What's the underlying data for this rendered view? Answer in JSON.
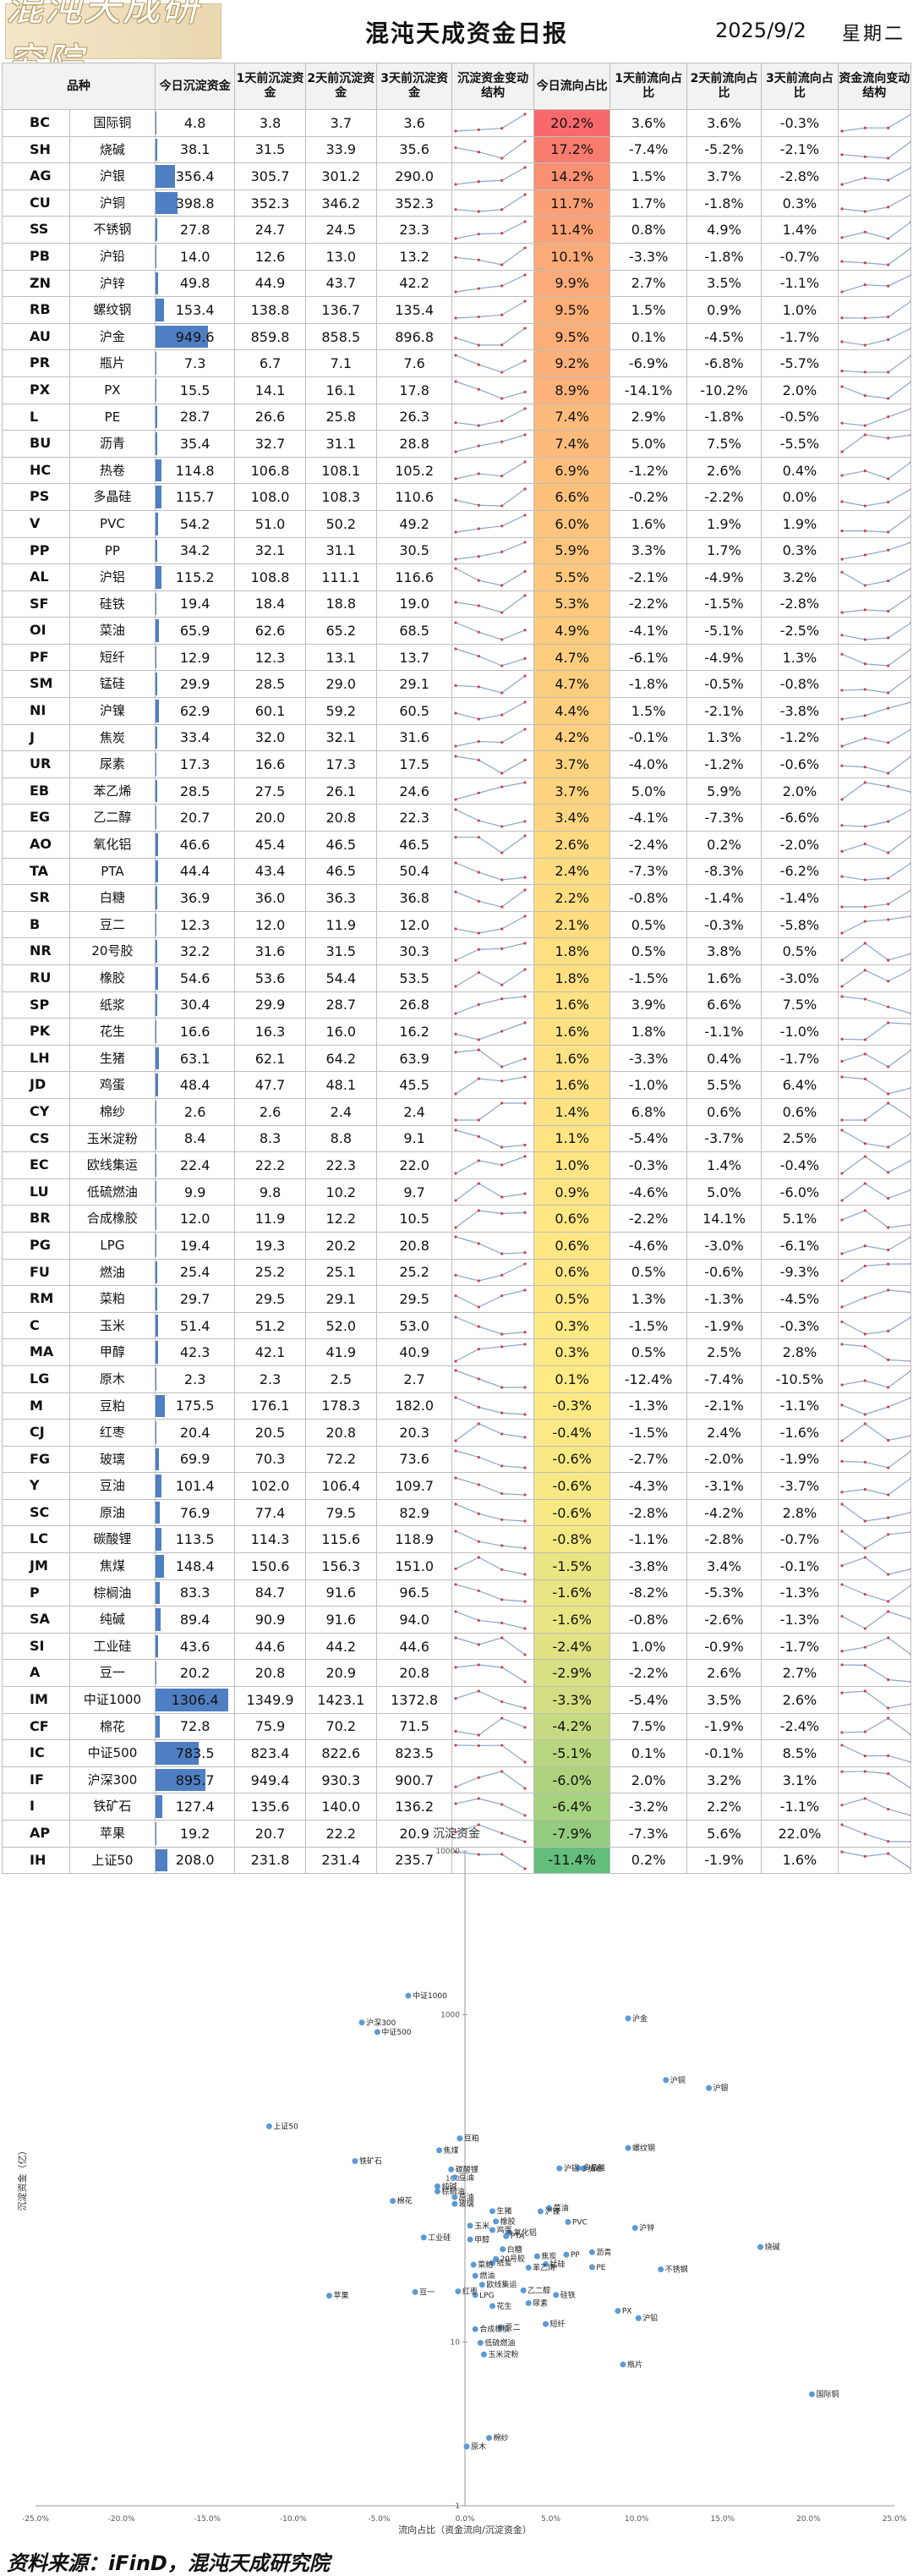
{
  "header": {
    "logo_text": "混沌天成研究院",
    "title": "混沌天成资金日报",
    "date": "2025/9/2",
    "weekday": "星期二"
  },
  "columns": [
    "品种",
    "今日沉淀资金",
    "1天前沉淀资金",
    "2天前沉淀资金",
    "3天前沉淀资金",
    "沉淀资金变动结构",
    "今日流向占比",
    "1天前流向占比",
    "2天前流向占比",
    "3天前流向占比",
    "资金流向变动结构"
  ],
  "rows": [
    [
      "BC",
      "国际铜",
      "4.8",
      "3.8",
      "3.7",
      "3.6",
      "20.2%",
      "3.6%",
      "3.6%",
      "-0.3%"
    ],
    [
      "SH",
      "烧碱",
      "38.1",
      "31.5",
      "33.9",
      "35.6",
      "17.2%",
      "-7.4%",
      "-5.2%",
      "-2.1%"
    ],
    [
      "AG",
      "沪银",
      "356.4",
      "305.7",
      "301.2",
      "290.0",
      "14.2%",
      "1.5%",
      "3.7%",
      "-2.8%"
    ],
    [
      "CU",
      "沪铜",
      "398.8",
      "352.3",
      "346.2",
      "352.3",
      "11.7%",
      "1.7%",
      "-1.8%",
      "0.3%"
    ],
    [
      "SS",
      "不锈钢",
      "27.8",
      "24.7",
      "24.5",
      "23.3",
      "11.4%",
      "0.8%",
      "4.9%",
      "1.4%"
    ],
    [
      "PB",
      "沪铅",
      "14.0",
      "12.6",
      "13.0",
      "13.2",
      "10.1%",
      "-3.3%",
      "-1.8%",
      "-0.7%"
    ],
    [
      "ZN",
      "沪锌",
      "49.8",
      "44.9",
      "43.7",
      "42.2",
      "9.9%",
      "2.7%",
      "3.5%",
      "-1.1%"
    ],
    [
      "RB",
      "螺纹钢",
      "153.4",
      "138.8",
      "136.7",
      "135.4",
      "9.5%",
      "1.5%",
      "0.9%",
      "1.0%"
    ],
    [
      "AU",
      "沪金",
      "949.6",
      "859.8",
      "858.5",
      "896.8",
      "9.5%",
      "0.1%",
      "-4.5%",
      "-1.7%"
    ],
    [
      "PR",
      "瓶片",
      "7.3",
      "6.7",
      "7.1",
      "7.6",
      "9.2%",
      "-6.9%",
      "-6.8%",
      "-5.7%"
    ],
    [
      "PX",
      "PX",
      "15.5",
      "14.1",
      "16.1",
      "17.8",
      "8.9%",
      "-14.1%",
      "-10.2%",
      "2.0%"
    ],
    [
      "L",
      "PE",
      "28.7",
      "26.6",
      "25.8",
      "26.3",
      "7.4%",
      "2.9%",
      "-1.8%",
      "-0.5%"
    ],
    [
      "BU",
      "沥青",
      "35.4",
      "32.7",
      "31.1",
      "28.8",
      "7.4%",
      "5.0%",
      "7.5%",
      "-5.5%"
    ],
    [
      "HC",
      "热卷",
      "114.8",
      "106.8",
      "108.1",
      "105.2",
      "6.9%",
      "-1.2%",
      "2.6%",
      "0.4%"
    ],
    [
      "PS",
      "多晶硅",
      "115.7",
      "108.0",
      "108.3",
      "110.6",
      "6.6%",
      "-0.2%",
      "-2.2%",
      "0.0%"
    ],
    [
      "V",
      "PVC",
      "54.2",
      "51.0",
      "50.2",
      "49.2",
      "6.0%",
      "1.6%",
      "1.9%",
      "1.9%"
    ],
    [
      "PP",
      "PP",
      "34.2",
      "32.1",
      "31.1",
      "30.5",
      "5.9%",
      "3.3%",
      "1.7%",
      "0.3%"
    ],
    [
      "AL",
      "沪铝",
      "115.2",
      "108.8",
      "111.1",
      "116.6",
      "5.5%",
      "-2.1%",
      "-4.9%",
      "3.2%"
    ],
    [
      "SF",
      "硅铁",
      "19.4",
      "18.4",
      "18.8",
      "19.0",
      "5.3%",
      "-2.2%",
      "-1.5%",
      "-2.8%"
    ],
    [
      "OI",
      "菜油",
      "65.9",
      "62.6",
      "65.2",
      "68.5",
      "4.9%",
      "-4.1%",
      "-5.1%",
      "-2.5%"
    ],
    [
      "PF",
      "短纤",
      "12.9",
      "12.3",
      "13.1",
      "13.7",
      "4.7%",
      "-6.1%",
      "-4.9%",
      "1.3%"
    ],
    [
      "SM",
      "锰硅",
      "29.9",
      "28.5",
      "29.0",
      "29.1",
      "4.7%",
      "-1.8%",
      "-0.5%",
      "-0.8%"
    ],
    [
      "NI",
      "沪镍",
      "62.9",
      "60.1",
      "59.2",
      "60.5",
      "4.4%",
      "1.5%",
      "-2.1%",
      "-3.8%"
    ],
    [
      "J",
      "焦炭",
      "33.4",
      "32.0",
      "32.1",
      "31.6",
      "4.2%",
      "-0.1%",
      "1.3%",
      "-1.2%"
    ],
    [
      "UR",
      "尿素",
      "17.3",
      "16.6",
      "17.3",
      "17.5",
      "3.7%",
      "-4.0%",
      "-1.2%",
      "-0.6%"
    ],
    [
      "EB",
      "苯乙烯",
      "28.5",
      "27.5",
      "26.1",
      "24.6",
      "3.7%",
      "5.0%",
      "5.9%",
      "2.0%"
    ],
    [
      "EG",
      "乙二醇",
      "20.7",
      "20.0",
      "20.8",
      "22.3",
      "3.4%",
      "-4.1%",
      "-7.3%",
      "-6.6%"
    ],
    [
      "AO",
      "氧化铝",
      "46.6",
      "45.4",
      "46.5",
      "46.5",
      "2.6%",
      "-2.4%",
      "0.2%",
      "-2.0%"
    ],
    [
      "TA",
      "PTA",
      "44.4",
      "43.4",
      "46.5",
      "50.4",
      "2.4%",
      "-7.3%",
      "-8.3%",
      "-6.2%"
    ],
    [
      "SR",
      "白糖",
      "36.9",
      "36.0",
      "36.3",
      "36.8",
      "2.2%",
      "-0.8%",
      "-1.4%",
      "-1.4%"
    ],
    [
      "B",
      "豆二",
      "12.3",
      "12.0",
      "11.9",
      "12.0",
      "2.1%",
      "0.5%",
      "-0.3%",
      "-5.8%"
    ],
    [
      "NR",
      "20号胶",
      "32.2",
      "31.6",
      "31.5",
      "30.3",
      "1.8%",
      "0.5%",
      "3.8%",
      "0.5%"
    ],
    [
      "RU",
      "橡胶",
      "54.6",
      "53.6",
      "54.4",
      "53.5",
      "1.8%",
      "-1.5%",
      "1.6%",
      "-3.0%"
    ],
    [
      "SP",
      "纸浆",
      "30.4",
      "29.9",
      "28.7",
      "26.8",
      "1.6%",
      "3.9%",
      "6.6%",
      "7.5%"
    ],
    [
      "PK",
      "花生",
      "16.6",
      "16.3",
      "16.0",
      "16.2",
      "1.6%",
      "1.8%",
      "-1.1%",
      "-1.0%"
    ],
    [
      "LH",
      "生猪",
      "63.1",
      "62.1",
      "64.2",
      "63.9",
      "1.6%",
      "-3.3%",
      "0.4%",
      "-1.7%"
    ],
    [
      "JD",
      "鸡蛋",
      "48.4",
      "47.7",
      "48.1",
      "45.5",
      "1.6%",
      "-1.0%",
      "5.5%",
      "6.4%"
    ],
    [
      "CY",
      "棉纱",
      "2.6",
      "2.6",
      "2.4",
      "2.4",
      "1.4%",
      "6.8%",
      "0.6%",
      "0.6%"
    ],
    [
      "CS",
      "玉米淀粉",
      "8.4",
      "8.3",
      "8.8",
      "9.1",
      "1.1%",
      "-5.4%",
      "-3.7%",
      "2.5%"
    ],
    [
      "EC",
      "欧线集运",
      "22.4",
      "22.2",
      "22.3",
      "22.0",
      "1.0%",
      "-0.3%",
      "1.4%",
      "-0.4%"
    ],
    [
      "LU",
      "低硫燃油",
      "9.9",
      "9.8",
      "10.2",
      "9.7",
      "0.9%",
      "-4.6%",
      "5.0%",
      "-6.0%"
    ],
    [
      "BR",
      "合成橡胶",
      "12.0",
      "11.9",
      "12.2",
      "10.5",
      "0.6%",
      "-2.2%",
      "14.1%",
      "5.1%"
    ],
    [
      "PG",
      "LPG",
      "19.4",
      "19.3",
      "20.2",
      "20.8",
      "0.6%",
      "-4.6%",
      "-3.0%",
      "-6.1%"
    ],
    [
      "FU",
      "燃油",
      "25.4",
      "25.2",
      "25.1",
      "25.2",
      "0.6%",
      "0.5%",
      "-0.6%",
      "-9.3%"
    ],
    [
      "RM",
      "菜粕",
      "29.7",
      "29.5",
      "29.1",
      "29.5",
      "0.5%",
      "1.3%",
      "-1.3%",
      "-4.5%"
    ],
    [
      "C",
      "玉米",
      "51.4",
      "51.2",
      "52.0",
      "53.0",
      "0.3%",
      "-1.5%",
      "-1.9%",
      "-0.3%"
    ],
    [
      "MA",
      "甲醇",
      "42.3",
      "42.1",
      "41.9",
      "40.9",
      "0.3%",
      "0.5%",
      "2.5%",
      "2.8%"
    ],
    [
      "LG",
      "原木",
      "2.3",
      "2.3",
      "2.5",
      "2.7",
      "0.1%",
      "-12.4%",
      "-7.4%",
      "-10.5%"
    ],
    [
      "M",
      "豆粕",
      "175.5",
      "176.1",
      "178.3",
      "182.0",
      "-0.3%",
      "-1.3%",
      "-2.1%",
      "-1.1%"
    ],
    [
      "CJ",
      "红枣",
      "20.4",
      "20.5",
      "20.8",
      "20.3",
      "-0.4%",
      "-1.5%",
      "2.4%",
      "-1.6%"
    ],
    [
      "FG",
      "玻璃",
      "69.9",
      "70.3",
      "72.2",
      "73.6",
      "-0.6%",
      "-2.7%",
      "-2.0%",
      "-1.9%"
    ],
    [
      "Y",
      "豆油",
      "101.4",
      "102.0",
      "106.4",
      "109.7",
      "-0.6%",
      "-4.3%",
      "-3.1%",
      "-3.7%"
    ],
    [
      "SC",
      "原油",
      "76.9",
      "77.4",
      "79.5",
      "82.9",
      "-0.6%",
      "-2.8%",
      "-4.2%",
      "2.8%"
    ],
    [
      "LC",
      "碳酸锂",
      "113.5",
      "114.3",
      "115.6",
      "118.9",
      "-0.8%",
      "-1.1%",
      "-2.8%",
      "-0.7%"
    ],
    [
      "JM",
      "焦煤",
      "148.4",
      "150.6",
      "156.3",
      "151.0",
      "-1.5%",
      "-3.8%",
      "3.4%",
      "-0.1%"
    ],
    [
      "P",
      "棕榈油",
      "83.3",
      "84.7",
      "91.6",
      "96.5",
      "-1.6%",
      "-8.2%",
      "-5.3%",
      "-1.3%"
    ],
    [
      "SA",
      "纯碱",
      "89.4",
      "90.9",
      "91.6",
      "94.0",
      "-1.6%",
      "-0.8%",
      "-2.6%",
      "-1.3%"
    ],
    [
      "SI",
      "工业硅",
      "43.6",
      "44.6",
      "44.2",
      "44.6",
      "-2.4%",
      "1.0%",
      "-0.9%",
      "-1.7%"
    ],
    [
      "A",
      "豆一",
      "20.2",
      "20.8",
      "20.9",
      "20.8",
      "-2.9%",
      "-2.2%",
      "2.6%",
      "2.7%"
    ],
    [
      "IM",
      "中证1000",
      "1306.4",
      "1349.9",
      "1423.1",
      "1372.8",
      "-3.3%",
      "-5.4%",
      "3.5%",
      "2.6%"
    ],
    [
      "CF",
      "棉花",
      "72.8",
      "75.9",
      "70.2",
      "71.5",
      "-4.2%",
      "7.5%",
      "-1.9%",
      "-2.4%"
    ],
    [
      "IC",
      "中证500",
      "783.5",
      "823.4",
      "822.6",
      "823.5",
      "-5.1%",
      "0.1%",
      "-0.1%",
      "8.5%"
    ],
    [
      "IF",
      "沪深300",
      "895.7",
      "949.4",
      "930.3",
      "900.7",
      "-6.0%",
      "2.0%",
      "3.2%",
      "3.1%"
    ],
    [
      "I",
      "铁矿石",
      "127.4",
      "135.6",
      "140.0",
      "136.2",
      "-6.4%",
      "-3.2%",
      "2.2%",
      "-1.1%"
    ],
    [
      "AP",
      "苹果",
      "19.2",
      "20.7",
      "22.2",
      "20.9",
      "-7.9%",
      "-7.3%",
      "5.6%",
      "22.0%"
    ],
    [
      "IH",
      "上证50",
      "208.0",
      "231.8",
      "231.4",
      "235.7",
      "-11.4%",
      "0.2%",
      "-1.9%",
      "1.6%"
    ]
  ],
  "colors": {
    "bar": "#4f7fc3",
    "flow_red": "#f8696b",
    "flow_yellow": "#ffeb84",
    "flow_green": "#63be7b",
    "spark_line": "#8aa6cf",
    "spark_dot": "#d0404a",
    "scatter_dot": "#5b9bd5"
  },
  "chart_data": {
    "type": "scatter",
    "title": "沉淀资金",
    "xlabel": "流向占比（资金流向/沉淀资金）",
    "ylabel": "沉淀资金（亿）",
    "x_scale": "linear",
    "y_scale": "log",
    "xlim": [
      -0.25,
      0.25
    ],
    "ylim": [
      1,
      10000
    ],
    "x_ticks": [
      "-25.0%",
      "-20.0%",
      "-15.0%",
      "-10.0%",
      "-5.0%",
      "0.0%",
      "5.0%",
      "10.0%",
      "15.0%",
      "20.0%",
      "25.0%"
    ],
    "y_ticks": [
      "1",
      "10",
      "100",
      "1000",
      "10000"
    ],
    "point_labels": "product names",
    "x_from": "rows[i][6]",
    "y_from": "rows[i][2]",
    "legend": "none",
    "grid": false
  },
  "footer": {
    "source": "资料来源：iFinD，混沌天成研究院"
  }
}
